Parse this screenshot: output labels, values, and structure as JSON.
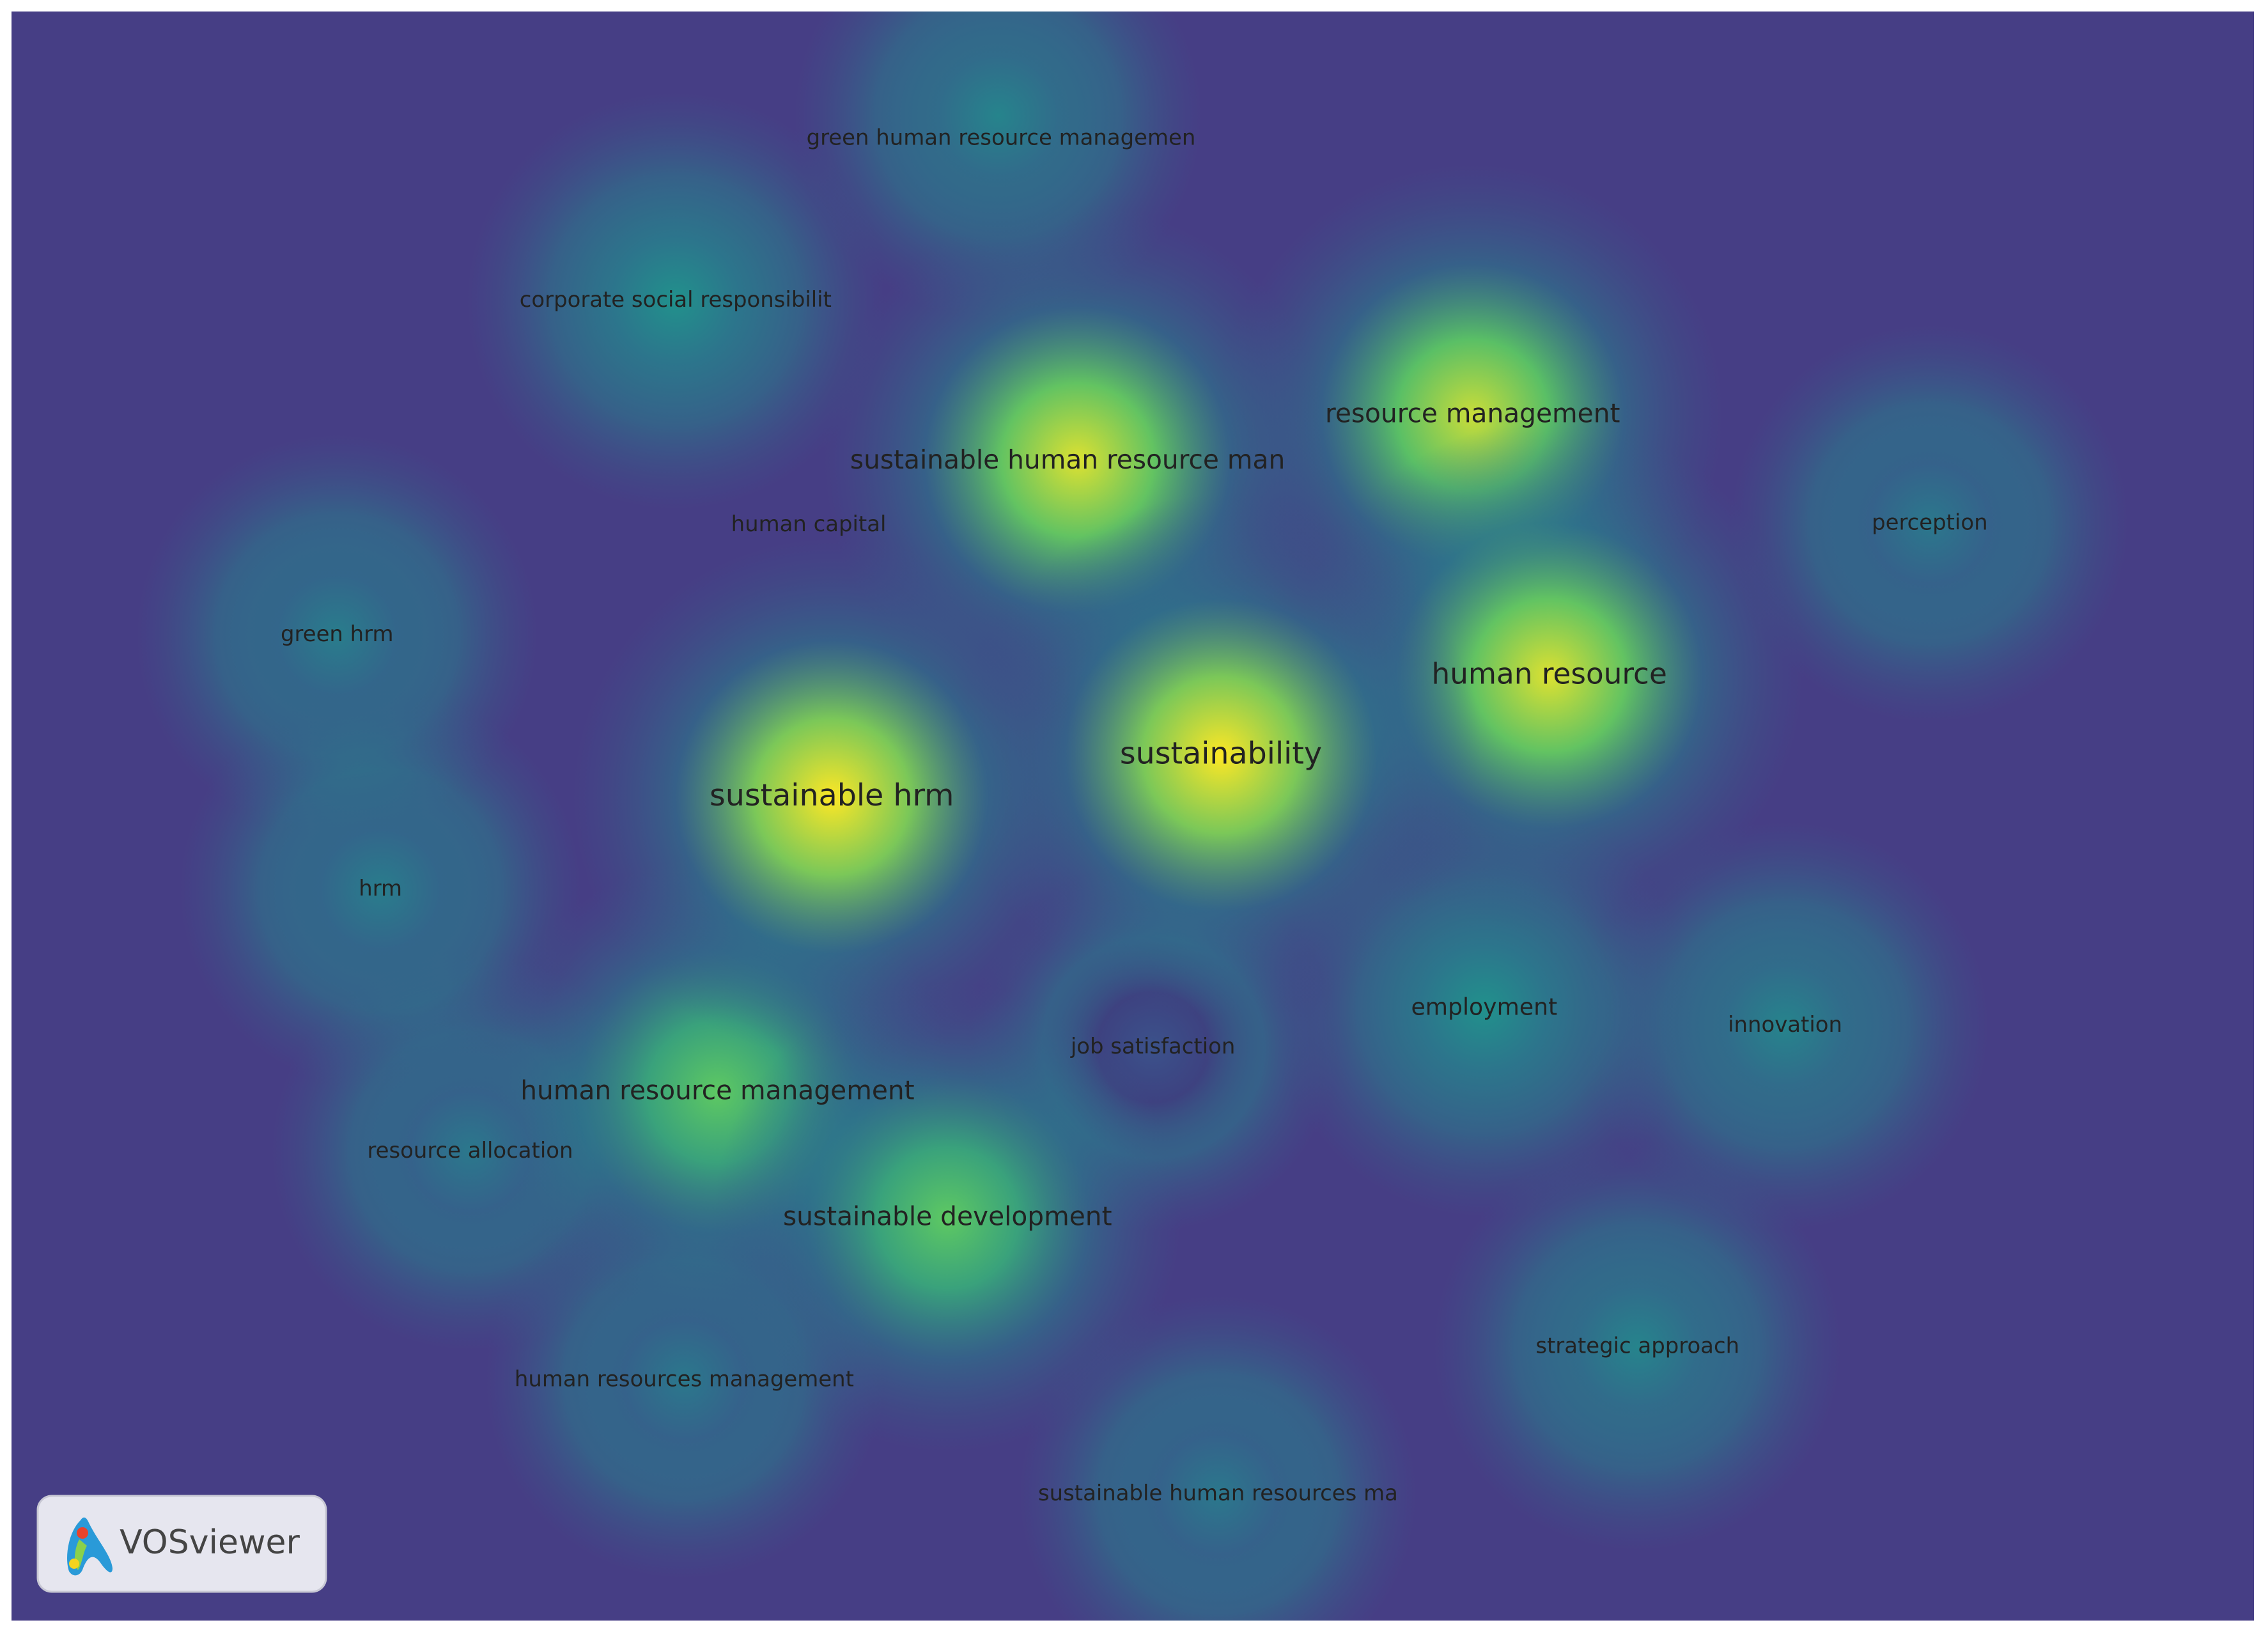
{
  "nodes": [
    {
      "label": "green human resource managemen"
    },
    {
      "label": "corporate social responsibilit"
    },
    {
      "label": "sustainable human resource man"
    },
    {
      "label": "resource management"
    },
    {
      "label": "human capital"
    },
    {
      "label": "perception"
    },
    {
      "label": "green hrm"
    },
    {
      "label": "human resource"
    },
    {
      "label": "sustainability"
    },
    {
      "label": "sustainable hrm"
    },
    {
      "label": "hrm"
    },
    {
      "label": "employment"
    },
    {
      "label": "innovation"
    },
    {
      "label": "job satisfaction"
    },
    {
      "label": "human resource management"
    },
    {
      "label": "resource allocation"
    },
    {
      "label": "sustainable development"
    },
    {
      "label": "strategic approach"
    },
    {
      "label": "human resources management"
    },
    {
      "label": "sustainable human resources ma"
    }
  ],
  "logo": {
    "text": "VOSviewer"
  }
}
